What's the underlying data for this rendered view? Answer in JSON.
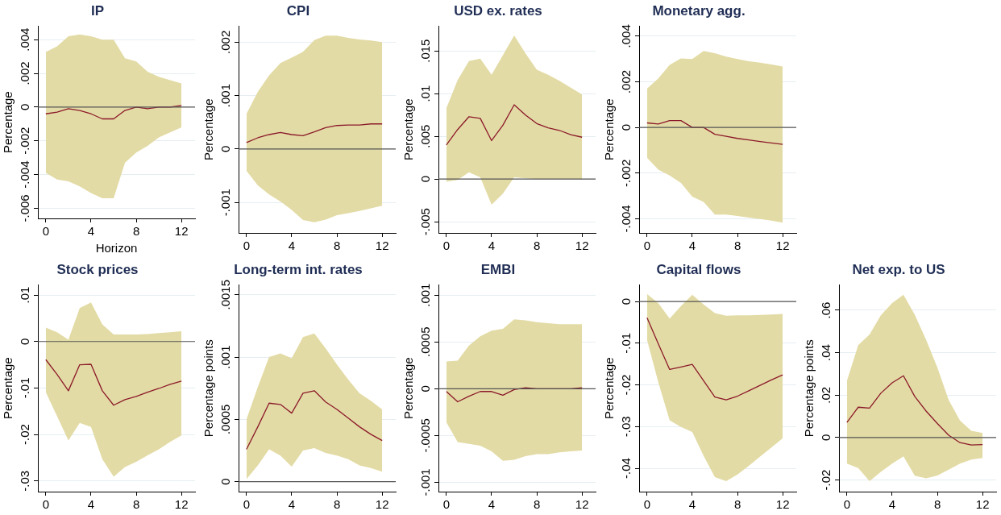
{
  "chart_data": [
    {
      "type": "line",
      "title": "IP",
      "xlabel": "Horizon",
      "ylabel": "Percentage",
      "x": [
        0,
        1,
        2,
        3,
        4,
        5,
        6,
        7,
        8,
        9,
        10,
        11,
        12
      ],
      "xlim": [
        -0.7,
        13.2
      ],
      "xticks": [
        0,
        4,
        8,
        12
      ],
      "ylim": [
        -0.0066,
        0.0048
      ],
      "yticks": [
        {
          "value": -0.006,
          "label": "-.006"
        },
        {
          "value": -0.004,
          "label": "-.004"
        },
        {
          "value": -0.002,
          "label": "-.002"
        },
        {
          "value": 0,
          "label": "0"
        },
        {
          "value": 0.002,
          "label": ".002"
        },
        {
          "value": 0.004,
          "label": ".004"
        }
      ],
      "grid": "y",
      "ref_lines": [
        {
          "axis": "y",
          "value": 0,
          "color": "#555555"
        }
      ],
      "series": [
        {
          "color": "#8b1a2a",
          "values": [
            -0.0004,
            -0.0003,
            -0.0001,
            -0.0002,
            -0.0004,
            -0.0007,
            -0.0007,
            -0.0002,
            0,
            -0.0001,
            0,
            0,
            0.0001
          ],
          "upper": [
            0.00327,
            0.0036,
            0.0042,
            0.0043,
            0.0042,
            0.004,
            0.004,
            0.0029,
            0.0027,
            0.0021,
            0.0018,
            0.0016,
            0.0014
          ],
          "lower": [
            -0.0039,
            -0.0043,
            -0.0044,
            -0.0047,
            -0.0051,
            -0.0054,
            -0.0054,
            -0.0033,
            -0.0027,
            -0.0023,
            -0.0018,
            -0.0015,
            -0.0012
          ]
        }
      ]
    },
    {
      "type": "line",
      "title": "CPI",
      "ylabel": "Percentage",
      "x": [
        0,
        1,
        2,
        3,
        4,
        5,
        6,
        7,
        8,
        9,
        10,
        11,
        12
      ],
      "xlim": [
        -0.7,
        13.2
      ],
      "xticks": [
        0,
        4,
        8,
        12
      ],
      "ylim": [
        -0.00157,
        0.0023
      ],
      "yticks": [
        {
          "value": -0.001,
          "label": "-.001"
        },
        {
          "value": 0,
          "label": "0"
        },
        {
          "value": 0.001,
          "label": ".001"
        },
        {
          "value": 0.002,
          "label": ".002"
        }
      ],
      "grid": "y",
      "ref_lines": [
        {
          "axis": "y",
          "value": 0,
          "color": "#555555"
        }
      ],
      "series": [
        {
          "color": "#8b1a2a",
          "values": [
            0.00012,
            0.00021,
            0.00027,
            0.00031,
            0.00027,
            0.00025,
            0.00032,
            0.0004,
            0.00044,
            0.00045,
            0.00045,
            0.00047,
            0.00047
          ],
          "upper": [
            0.00066,
            0.00107,
            0.00138,
            0.00161,
            0.00171,
            0.00182,
            0.00204,
            0.00212,
            0.00212,
            0.00208,
            0.00205,
            0.00203,
            0.002
          ],
          "lower": [
            -0.00041,
            -0.00068,
            -0.00085,
            -0.00098,
            -0.00114,
            -0.00133,
            -0.00137,
            -0.00132,
            -0.00124,
            -0.0012,
            -0.00116,
            -0.00111,
            -0.00106
          ]
        }
      ]
    },
    {
      "type": "line",
      "title": "USD ex. rates",
      "ylabel": "Percentage",
      "x": [
        0,
        1,
        2,
        3,
        4,
        5,
        6,
        7,
        8,
        9,
        10,
        11,
        12
      ],
      "xlim": [
        -0.7,
        13.2
      ],
      "xticks": [
        0,
        4,
        8,
        12
      ],
      "ylim": [
        -0.0063,
        0.0179
      ],
      "yticks": [
        {
          "value": -0.005,
          "label": "-.005"
        },
        {
          "value": 0,
          "label": "0"
        },
        {
          "value": 0.005,
          "label": ".005"
        },
        {
          "value": 0.01,
          "label": ".01"
        },
        {
          "value": 0.015,
          "label": ".015"
        }
      ],
      "grid": "y",
      "ref_lines": [
        {
          "axis": "y",
          "value": 0,
          "color": "#555555"
        }
      ],
      "series": [
        {
          "color": "#8b1a2a",
          "values": [
            0.004,
            0.0058,
            0.0073,
            0.0071,
            0.0045,
            0.0063,
            0.0087,
            0.0075,
            0.0065,
            0.006,
            0.0057,
            0.0052,
            0.0049
          ],
          "upper": [
            0.0083,
            0.0116,
            0.0138,
            0.0141,
            0.0122,
            0.0145,
            0.0168,
            0.0147,
            0.0128,
            0.0122,
            0.0115,
            0.0107,
            0.0099
          ],
          "lower": [
            -0.0003,
            -0.0001,
            0.0008,
            0.0002,
            -0.003,
            -0.0017,
            0.0002,
            0.0001,
            0,
            0,
            0,
            0,
            0
          ]
        }
      ]
    },
    {
      "type": "line",
      "title": "Monetary agg.",
      "ylabel": "Percentage",
      "x": [
        0,
        1,
        2,
        3,
        4,
        5,
        6,
        7,
        8,
        9,
        10,
        11,
        12
      ],
      "xlim": [
        -0.7,
        13.2
      ],
      "xticks": [
        0,
        4,
        8,
        12
      ],
      "ylim": [
        -0.00462,
        0.00444
      ],
      "yticks": [
        {
          "value": -0.004,
          "label": "-.004"
        },
        {
          "value": -0.002,
          "label": "-.002"
        },
        {
          "value": 0,
          "label": "0"
        },
        {
          "value": 0.002,
          "label": ".002"
        },
        {
          "value": 0.004,
          "label": ".004"
        }
      ],
      "grid": "y",
      "ref_lines": [
        {
          "axis": "y",
          "value": 0,
          "color": "#555555"
        }
      ],
      "series": [
        {
          "color": "#8b1a2a",
          "values": [
            0.0002,
            0.00015,
            0.0003,
            0.0003,
            0,
            0,
            -0.0003,
            -0.00039,
            -0.00048,
            -0.00055,
            -0.00062,
            -0.00068,
            -0.00074
          ],
          "upper": [
            0.0017,
            0.00215,
            0.00274,
            0.00302,
            0.003,
            0.00335,
            0.00325,
            0.0031,
            0.003,
            0.0029,
            0.00284,
            0.00276,
            0.00267
          ],
          "lower": [
            -0.00133,
            -0.00185,
            -0.0021,
            -0.00243,
            -0.00303,
            -0.00326,
            -0.00382,
            -0.00382,
            -0.00388,
            -0.00395,
            -0.00401,
            -0.00408,
            -0.00417
          ]
        }
      ]
    },
    {
      "type": "line",
      "title": "Stock prices",
      "ylabel": "Percentage",
      "x": [
        0,
        1,
        2,
        3,
        4,
        5,
        6,
        7,
        8,
        9,
        10,
        11,
        12
      ],
      "xlim": [
        -0.7,
        13.2
      ],
      "xticks": [
        0,
        4,
        8,
        12
      ],
      "ylim": [
        -0.0323,
        0.0122
      ],
      "yticks": [
        {
          "value": -0.03,
          "label": "-.03"
        },
        {
          "value": -0.02,
          "label": "-.02"
        },
        {
          "value": -0.01,
          "label": "-.01"
        },
        {
          "value": 0,
          "label": "0"
        },
        {
          "value": 0.01,
          "label": ".01"
        }
      ],
      "grid": "y",
      "ref_lines": [
        {
          "axis": "y",
          "value": 0,
          "color": "#555555"
        }
      ],
      "series": [
        {
          "color": "#8b1a2a",
          "values": [
            -0.0039,
            -0.0071,
            -0.0106,
            -0.005,
            -0.0049,
            -0.0106,
            -0.0137,
            -0.0125,
            -0.0118,
            -0.0109,
            -0.0101,
            -0.0092,
            -0.0085
          ],
          "upper": [
            0.003,
            0.002,
            0.0004,
            0.0072,
            0.0084,
            0.0037,
            0.0015,
            0.0015,
            0.0015,
            0.0016,
            0.0018,
            0.002,
            0.0022
          ],
          "lower": [
            -0.0109,
            -0.0161,
            -0.0213,
            -0.0175,
            -0.0184,
            -0.0253,
            -0.0291,
            -0.027,
            -0.0259,
            -0.0245,
            -0.0232,
            -0.0216,
            -0.0202
          ]
        }
      ]
    },
    {
      "type": "line",
      "title": "Long-term int. rates",
      "ylabel": "Percentage points",
      "x": [
        0,
        1,
        2,
        3,
        4,
        5,
        6,
        7,
        8,
        9,
        10,
        11,
        12
      ],
      "xlim": [
        -0.7,
        13.2
      ],
      "xticks": [
        0,
        4,
        8,
        12
      ],
      "ylim": [
        -8e-05,
        0.00158
      ],
      "yticks": [
        {
          "value": 0,
          "label": "0"
        },
        {
          "value": 0.0005,
          "label": ".0005"
        },
        {
          "value": 0.001,
          "label": ".001"
        },
        {
          "value": 0.0015,
          "label": ".0015"
        }
      ],
      "grid": "y",
      "ref_lines": [
        {
          "axis": "y",
          "value": 0,
          "color": "#555555"
        }
      ],
      "series": [
        {
          "color": "#8b1a2a",
          "values": [
            0.00026,
            0.00044,
            0.00063,
            0.00062,
            0.00055,
            0.00071,
            0.00073,
            0.00064,
            0.00058,
            0.00051,
            0.00044,
            0.00038,
            0.00033
          ],
          "upper": [
            0.0005,
            0.00076,
            0.001,
            0.00103,
            0.00099,
            0.00116,
            0.00119,
            0.00107,
            0.00094,
            0.00082,
            0.00071,
            0.00065,
            0.00058
          ],
          "lower": [
            2e-05,
            0.00013,
            0.00026,
            0.00021,
            0.00012,
            0.00025,
            0.00027,
            0.00023,
            0.00021,
            0.00018,
            0.00013,
            0.00011,
            8e-05
          ]
        }
      ]
    },
    {
      "type": "line",
      "title": "EMBI",
      "ylabel": "Percentage",
      "x": [
        0,
        1,
        2,
        3,
        4,
        5,
        6,
        7,
        8,
        9,
        10,
        11,
        12
      ],
      "xlim": [
        -0.7,
        13.2
      ],
      "xticks": [
        0,
        4,
        8,
        12
      ],
      "ylim": [
        -0.0011,
        0.00111
      ],
      "yticks": [
        {
          "value": -0.001,
          "label": "-.001"
        },
        {
          "value": -0.0005,
          "label": "-.0005"
        },
        {
          "value": 0,
          "label": "0"
        },
        {
          "value": 0.0005,
          "label": ".0005"
        },
        {
          "value": 0.001,
          "label": ".001"
        }
      ],
      "grid": "y",
      "ref_lines": [
        {
          "axis": "y",
          "value": 0,
          "color": "#555555"
        }
      ],
      "series": [
        {
          "color": "#8b1a2a",
          "values": [
            -3e-05,
            -0.00014,
            -8e-05,
            -3e-05,
            -3e-05,
            -7e-05,
            -1e-05,
            1e-05,
            0,
            0,
            0,
            0,
            1e-05
          ],
          "upper": [
            0.00029,
            0.0003,
            0.00046,
            0.00056,
            0.00062,
            0.00064,
            0.00074,
            0.00073,
            0.00071,
            0.0007,
            0.00069,
            0.00069,
            0.00069
          ],
          "lower": [
            -0.00036,
            -0.00057,
            -0.00059,
            -0.00061,
            -0.00067,
            -0.00077,
            -0.00076,
            -0.00072,
            -0.0007,
            -0.0007,
            -0.00068,
            -0.00067,
            -0.00066
          ]
        }
      ]
    },
    {
      "type": "line",
      "title": "Capital flows",
      "ylabel": "Percentage",
      "x": [
        0,
        1,
        2,
        3,
        4,
        5,
        6,
        7,
        8,
        9,
        10,
        11,
        12
      ],
      "xlim": [
        -0.7,
        13.2
      ],
      "xticks": [
        0,
        4,
        8,
        12
      ],
      "ylim": [
        -0.0456,
        0.004
      ],
      "yticks": [
        {
          "value": -0.04,
          "label": "-.04"
        },
        {
          "value": -0.03,
          "label": "-.03"
        },
        {
          "value": -0.02,
          "label": "-.02"
        },
        {
          "value": -0.01,
          "label": "-.01"
        },
        {
          "value": 0,
          "label": "0"
        }
      ],
      "grid": "y",
      "ref_lines": [
        {
          "axis": "y",
          "value": 0,
          "color": "#555555"
        }
      ],
      "series": [
        {
          "color": "#8b1a2a",
          "values": [
            -0.0039,
            -0.0102,
            -0.0163,
            -0.0157,
            -0.0151,
            -0.019,
            -0.0229,
            -0.0236,
            -0.0227,
            -0.0214,
            -0.0201,
            -0.0188,
            -0.0176
          ],
          "upper": [
            0.0018,
            -0.0004,
            -0.0041,
            -0.0011,
            0.0016,
            -0.0007,
            -0.0028,
            -0.0034,
            -0.0033,
            -0.0033,
            -0.0032,
            -0.0031,
            -0.003
          ],
          "lower": [
            -0.0092,
            -0.0194,
            -0.0285,
            -0.0301,
            -0.0313,
            -0.037,
            -0.0421,
            -0.0431,
            -0.0415,
            -0.0394,
            -0.0372,
            -0.035,
            -0.0328
          ]
        }
      ]
    },
    {
      "type": "line",
      "title": "Net exp. to US",
      "ylabel": "Percentage points",
      "x": [
        0,
        1,
        2,
        3,
        4,
        5,
        6,
        7,
        8,
        9,
        10,
        11,
        12
      ],
      "xlim": [
        -0.7,
        13.2
      ],
      "xticks": [
        0,
        4,
        8,
        12
      ],
      "ylim": [
        -0.0255,
        0.072
      ],
      "yticks": [
        {
          "value": -0.02,
          "label": "-.02"
        },
        {
          "value": 0,
          "label": "0"
        },
        {
          "value": 0.02,
          "label": ".02"
        },
        {
          "value": 0.04,
          "label": ".04"
        },
        {
          "value": 0.06,
          "label": ".06"
        }
      ],
      "grid": "y",
      "ref_lines": [
        {
          "axis": "y",
          "value": 0,
          "color": "#555555"
        }
      ],
      "series": [
        {
          "color": "#8b1a2a",
          "values": [
            0.0071,
            0.0143,
            0.0139,
            0.0209,
            0.0258,
            0.0291,
            0.0194,
            0.0125,
            0.0066,
            0.0011,
            -0.0024,
            -0.0035,
            -0.0033
          ],
          "upper": [
            0.0267,
            0.0436,
            0.0486,
            0.0576,
            0.0634,
            0.0673,
            0.0579,
            0.0461,
            0.033,
            0.0177,
            0.008,
            0.0032,
            0.0021
          ],
          "lower": [
            -0.0123,
            -0.0144,
            -0.0206,
            -0.0162,
            -0.0123,
            -0.0089,
            -0.018,
            -0.0192,
            -0.0179,
            -0.0151,
            -0.0123,
            -0.0104,
            -0.0096
          ]
        }
      ]
    }
  ]
}
